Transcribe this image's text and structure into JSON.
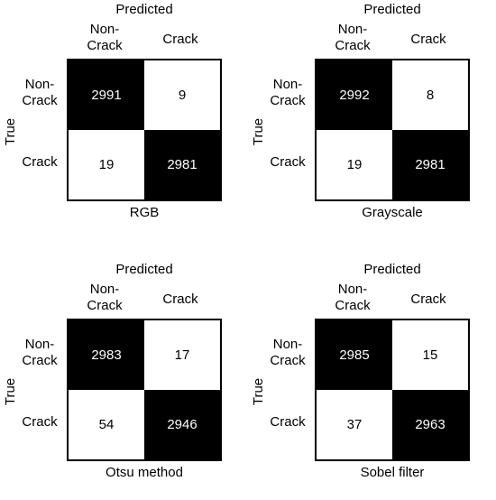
{
  "chart_data": [
    {
      "type": "heatmap",
      "axis_top": "Predicted",
      "axis_left": "True",
      "columns": [
        "Non-\nCrack",
        "Crack"
      ],
      "rows": [
        "Non-\nCrack",
        "Crack"
      ],
      "values": [
        [
          2991,
          9
        ],
        [
          19,
          2981
        ]
      ],
      "caption": "RGB"
    },
    {
      "type": "heatmap",
      "axis_top": "Predicted",
      "axis_left": "True",
      "columns": [
        "Non-\nCrack",
        "Crack"
      ],
      "rows": [
        "Non-\nCrack",
        "Crack"
      ],
      "values": [
        [
          2992,
          8
        ],
        [
          19,
          2981
        ]
      ],
      "caption": "Grayscale"
    },
    {
      "type": "heatmap",
      "axis_top": "Predicted",
      "axis_left": "True",
      "columns": [
        "Non-\nCrack",
        "Crack"
      ],
      "rows": [
        "Non-\nCrack",
        "Crack"
      ],
      "values": [
        [
          2983,
          17
        ],
        [
          54,
          2946
        ]
      ],
      "caption": "Otsu method"
    },
    {
      "type": "heatmap",
      "axis_top": "Predicted",
      "axis_left": "True",
      "columns": [
        "Non-\nCrack",
        "Crack"
      ],
      "rows": [
        "Non-\nCrack",
        "Crack"
      ],
      "values": [
        [
          2985,
          15
        ],
        [
          37,
          2963
        ]
      ],
      "caption": "Sobel filter"
    }
  ],
  "colors": {
    "diagonal": "#000000",
    "off_diagonal": "#ffffff"
  }
}
